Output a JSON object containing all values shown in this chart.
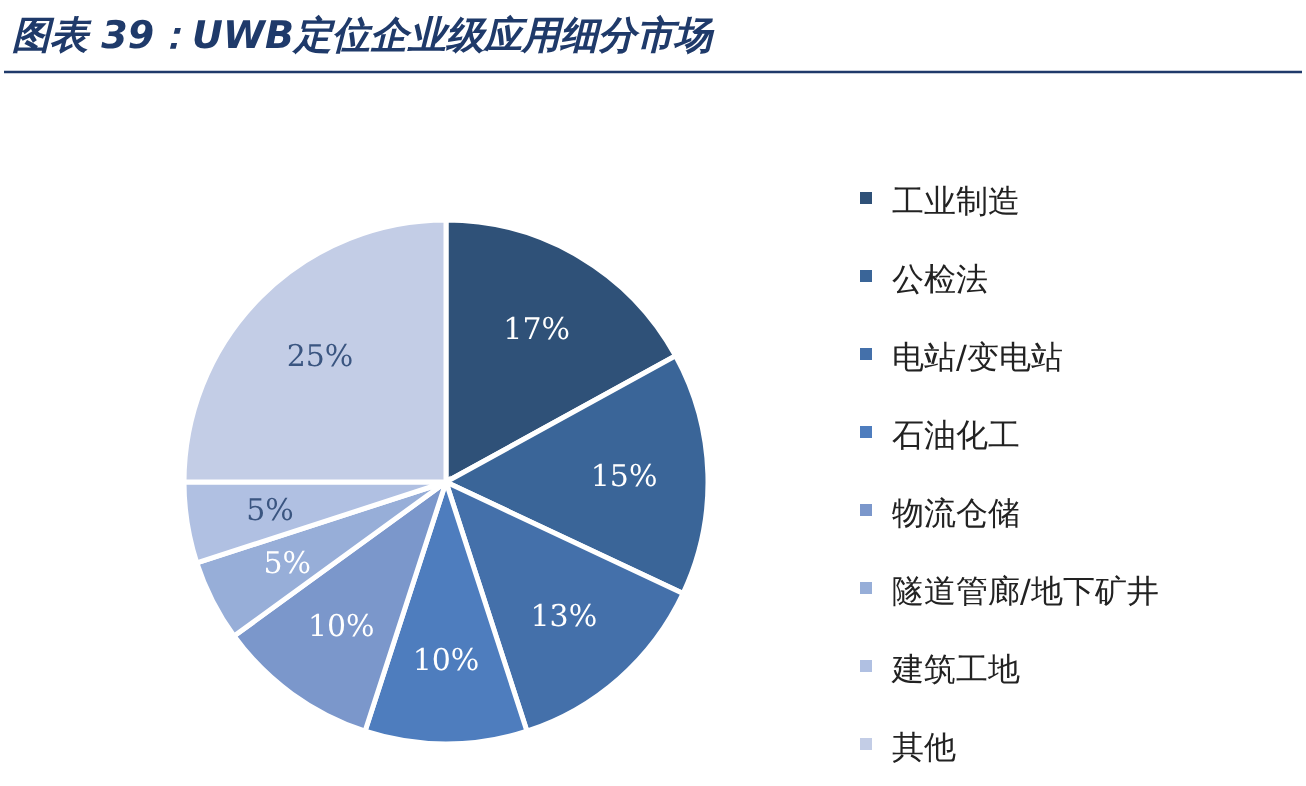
{
  "chart_data": {
    "type": "pie",
    "title": "图表 39：UWB定位企业级应用细分市场",
    "categories": [
      "工业制造",
      "公检法",
      "电站/变电站",
      "石油化工",
      "物流仓储",
      "隧道管廊/地下矿井",
      "建筑工地",
      "其他"
    ],
    "values": [
      17,
      15,
      13,
      10,
      10,
      5,
      5,
      25
    ],
    "value_labels": [
      "17%",
      "15%",
      "13%",
      "10%",
      "10%",
      "5%",
      "5%",
      "25%"
    ],
    "colors": [
      "#2f5178",
      "#3a6598",
      "#4470aa",
      "#4e7dbe",
      "#7b97cb",
      "#97aed8",
      "#b0c0e2",
      "#c3cde6"
    ],
    "legend": "right"
  }
}
